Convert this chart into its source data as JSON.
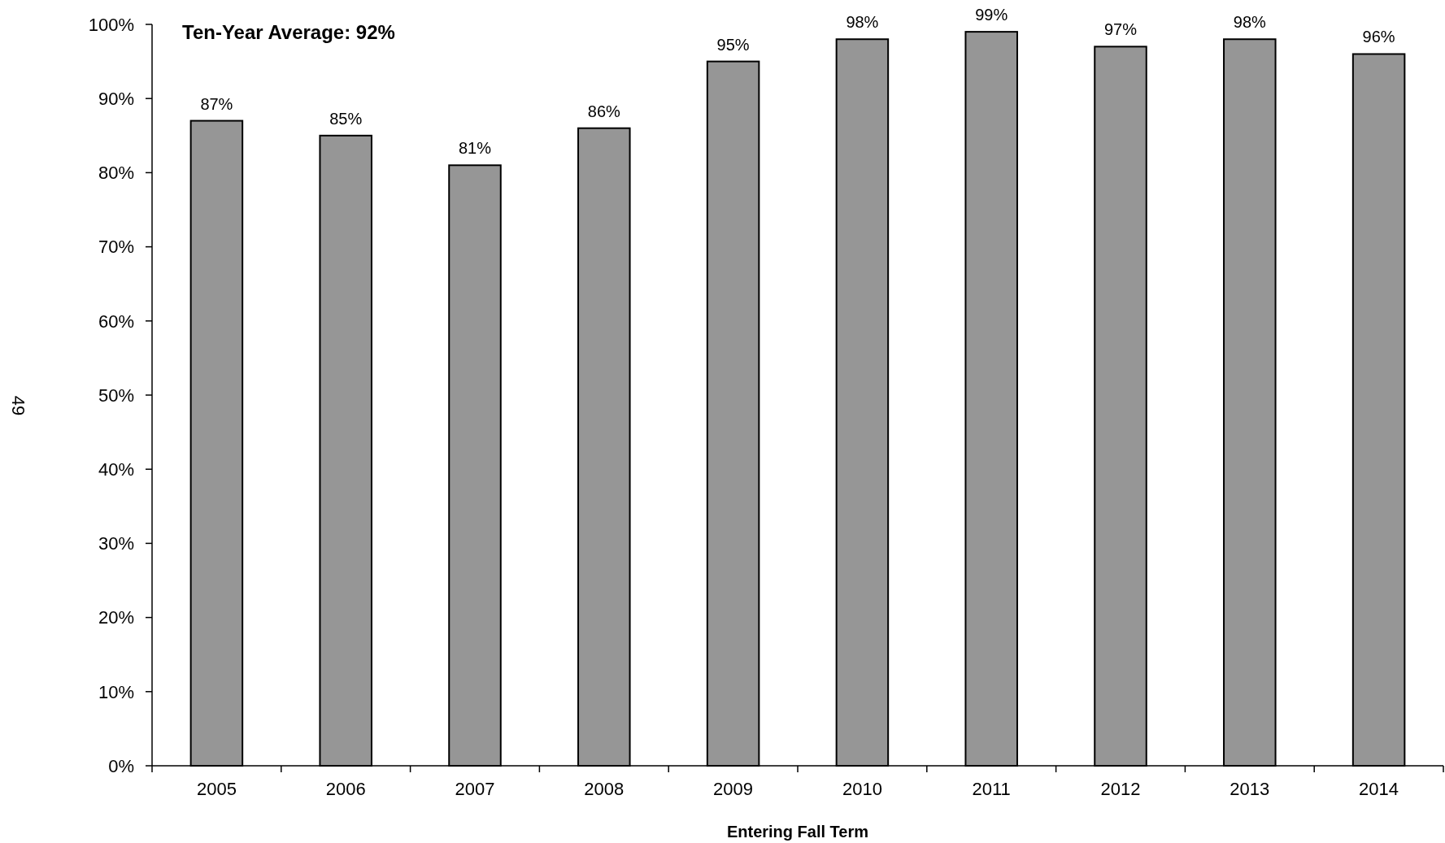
{
  "chart_data": {
    "type": "bar",
    "xlabel": "Entering Fall Term",
    "categories": [
      "2005",
      "2006",
      "2007",
      "2008",
      "2009",
      "2010",
      "2011",
      "2012",
      "2013",
      "2014"
    ],
    "values": [
      87,
      85,
      81,
      86,
      95,
      98,
      99,
      97,
      98,
      96
    ],
    "value_labels": [
      "87%",
      "85%",
      "81%",
      "86%",
      "95%",
      "98%",
      "99%",
      "97%",
      "98%",
      "96%"
    ],
    "color": "#969696",
    "ylim": [
      0,
      100
    ],
    "yticks": [
      {
        "value": 0,
        "label": "0%"
      },
      {
        "value": 10,
        "label": "10%"
      },
      {
        "value": 20,
        "label": "20%"
      },
      {
        "value": 30,
        "label": "30%"
      },
      {
        "value": 40,
        "label": "40%"
      },
      {
        "value": 50,
        "label": "50%"
      },
      {
        "value": 60,
        "label": "60%"
      },
      {
        "value": 70,
        "label": "70%"
      },
      {
        "value": 80,
        "label": "80%"
      },
      {
        "value": 90,
        "label": "90%"
      },
      {
        "value": 100,
        "label": "100%"
      }
    ],
    "annotations": [
      "Ten-Year Average: 92%",
      "49"
    ]
  }
}
